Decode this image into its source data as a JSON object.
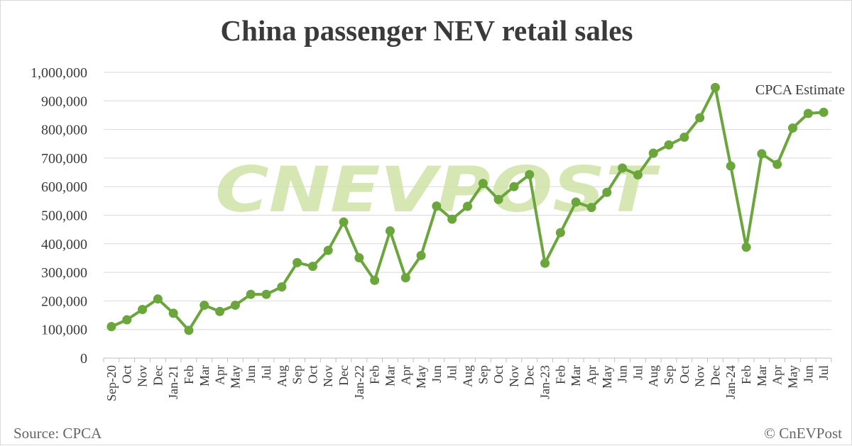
{
  "chart_data": {
    "type": "line",
    "title": "China passenger NEV retail sales",
    "categories": [
      "Sep-20",
      "Oct",
      "Nov",
      "Dec",
      "Jan-21",
      "Feb",
      "Mar",
      "Apr",
      "May",
      "Jun",
      "Jul",
      "Aug",
      "Sep",
      "Oct",
      "Nov",
      "Dec",
      "Jan-22",
      "Feb",
      "Mar",
      "Apr",
      "May",
      "Jun",
      "Jul",
      "Aug",
      "Sep",
      "Oct",
      "Nov",
      "Dec",
      "Jan-23",
      "Feb",
      "Mar",
      "Apr",
      "May",
      "Jun",
      "Jul",
      "Aug",
      "Sep",
      "Oct",
      "Nov",
      "Dec",
      "Jan-24",
      "Feb",
      "Mar",
      "Apr",
      "May",
      "Jun",
      "Jul"
    ],
    "series": [
      {
        "values": [
          110000,
          134000,
          170000,
          207000,
          157000,
          97000,
          185000,
          163000,
          185000,
          223000,
          223000,
          249000,
          334000,
          321000,
          377000,
          476000,
          351000,
          272000,
          445000,
          281000,
          359000,
          532000,
          486000,
          531000,
          611000,
          555000,
          600000,
          642000,
          332000,
          439000,
          546000,
          527000,
          580000,
          665000,
          641000,
          717000,
          746000,
          773000,
          841000,
          947000,
          672000,
          388000,
          715000,
          678000,
          805000,
          856000,
          860000
        ],
        "color": "#6aa63c"
      }
    ],
    "ylim": [
      0,
      1000000
    ],
    "yticks": [
      "0",
      "100,000",
      "200,000",
      "300,000",
      "400,000",
      "500,000",
      "600,000",
      "700,000",
      "800,000",
      "900,000",
      "1,000,000"
    ],
    "grid": true,
    "annotation": "CPCA Estimate"
  },
  "footer": {
    "source": "Source: CPCA",
    "credit": "© CnEVPost"
  },
  "watermark": "CNEVPOST",
  "colors": {
    "line": "#6aa63c",
    "grid": "#d9d9d9",
    "text": "#3a3a3a",
    "watermark": "#cfe3a6"
  }
}
